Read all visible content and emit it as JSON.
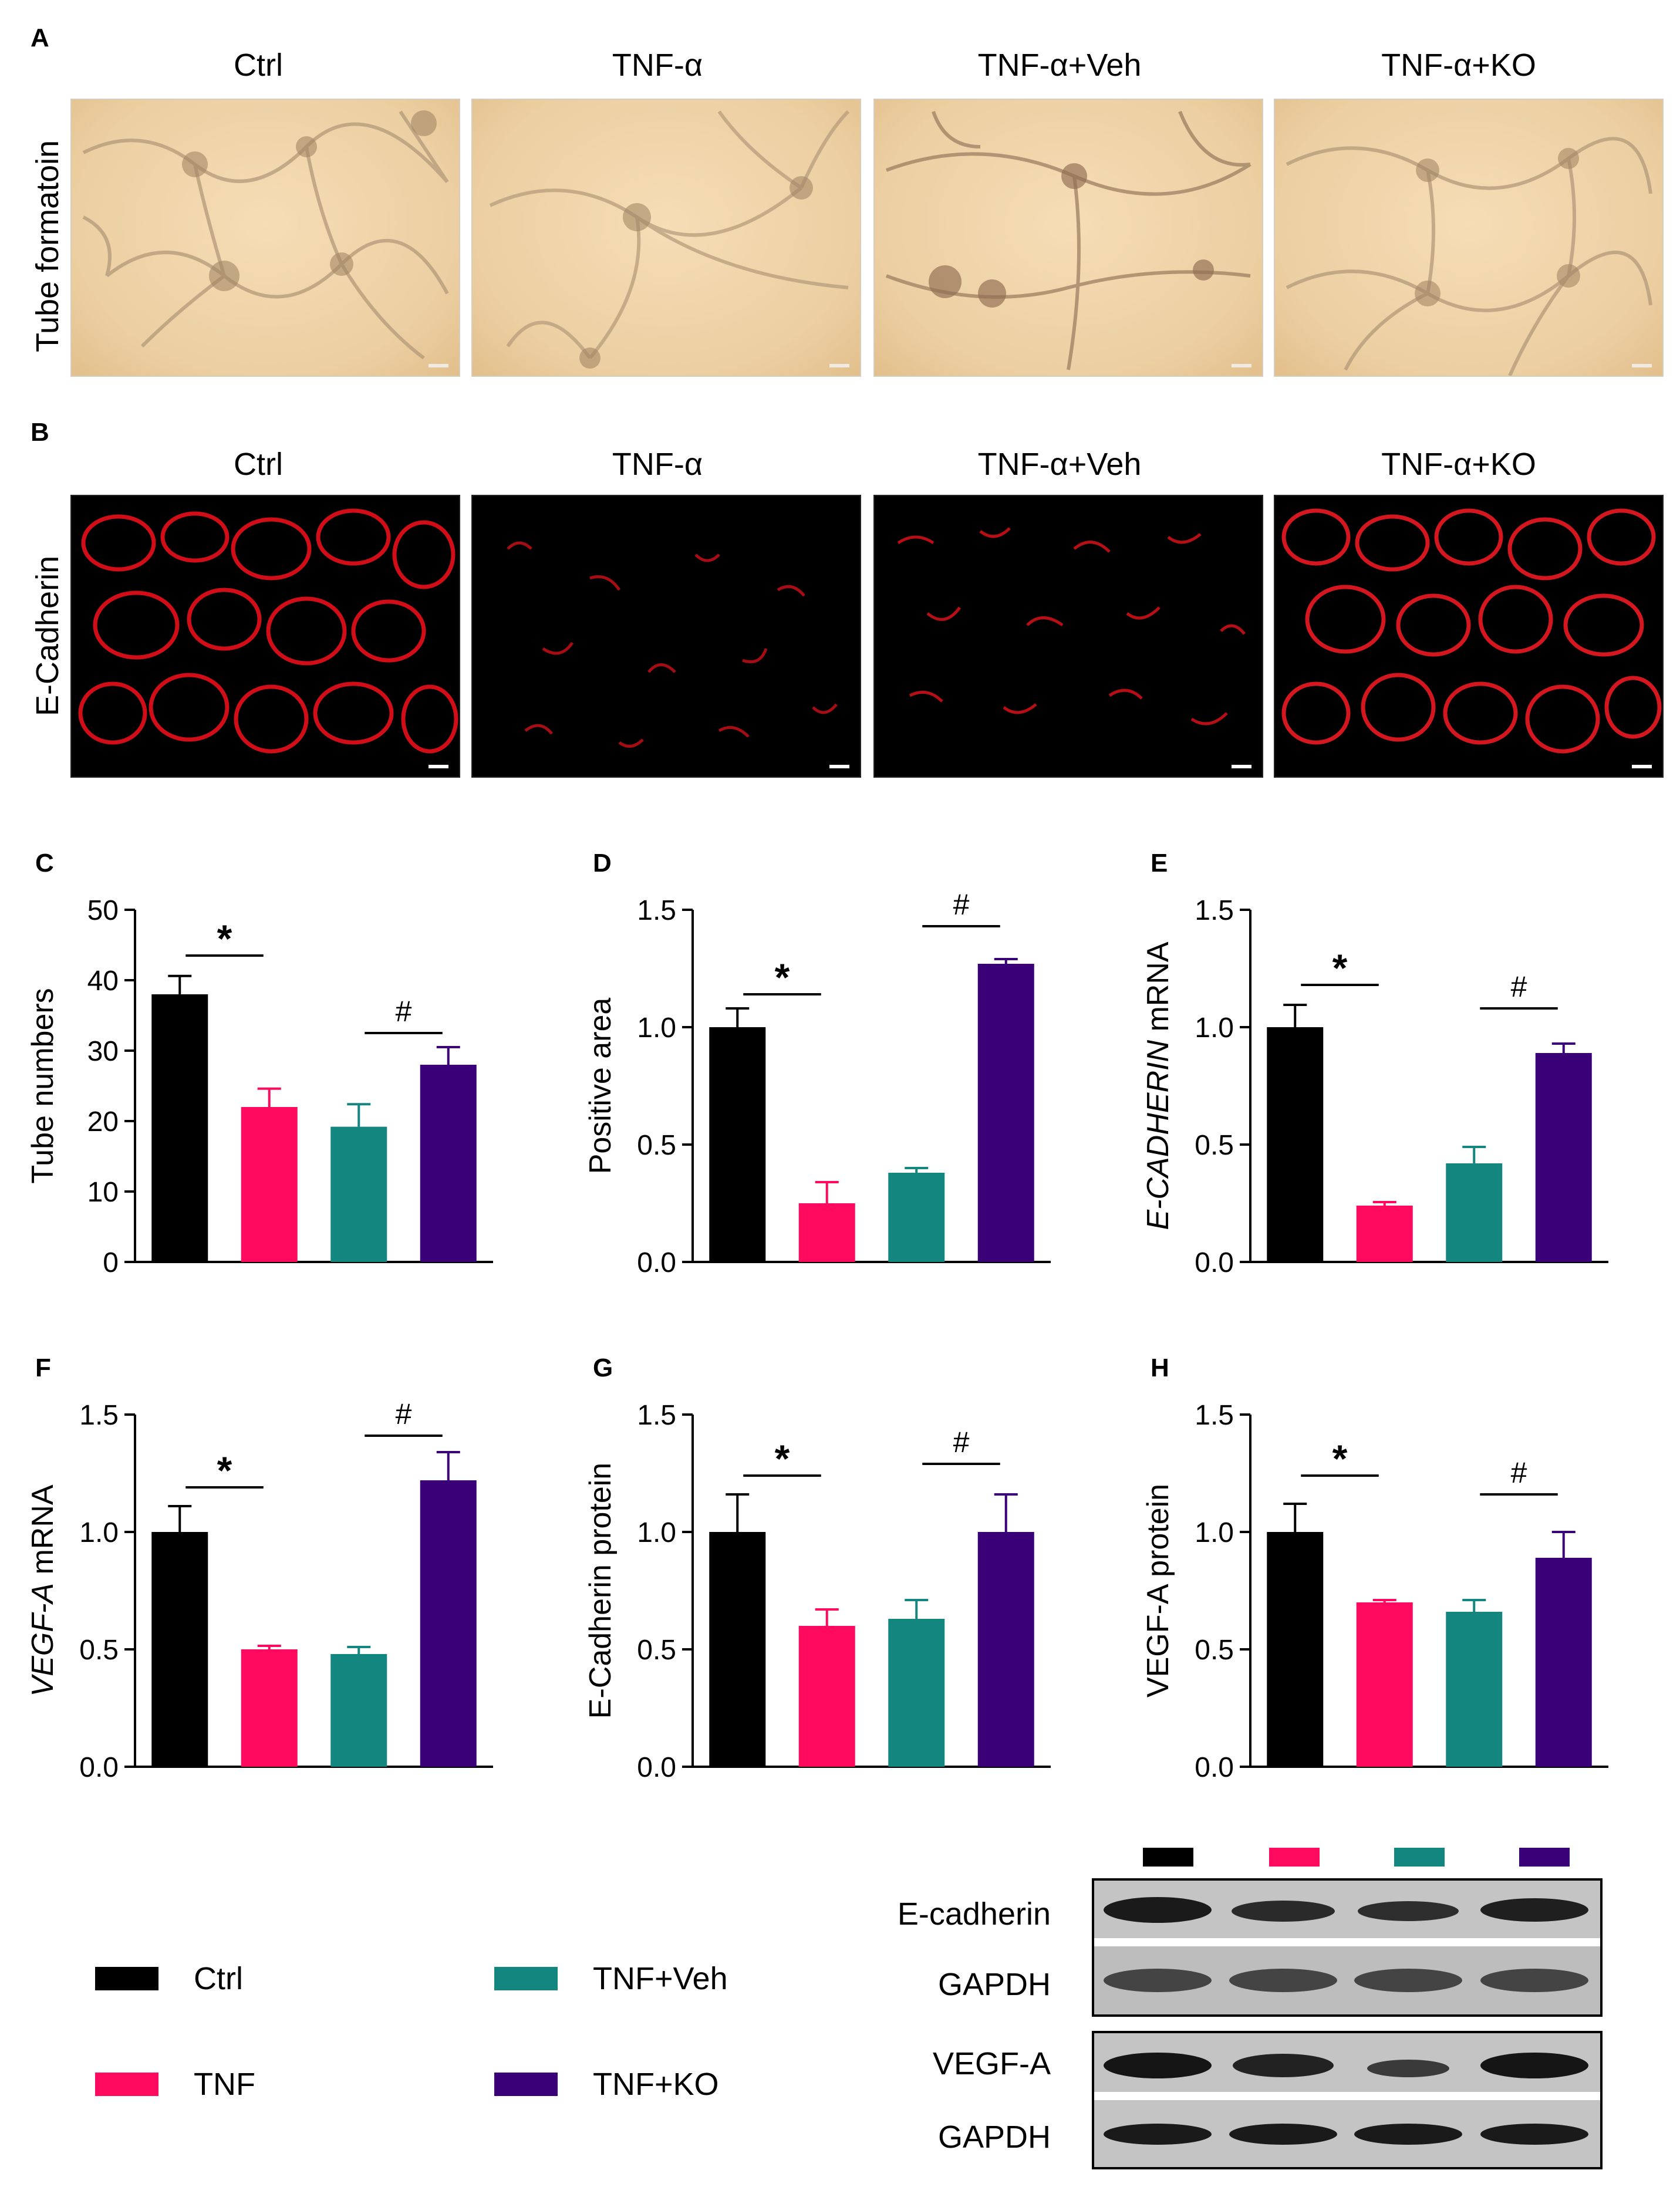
{
  "panels": {
    "A": {
      "letter": "A",
      "row_label": "Tube formatoin"
    },
    "B": {
      "letter": "B",
      "row_label": "E-Cadherin"
    },
    "column_titles": [
      "Ctrl",
      "TNF-α",
      "TNF-α+Veh",
      "TNF-α+KO"
    ]
  },
  "colors": {
    "ctrl": "#000000",
    "tnf": "#ff0a5e",
    "veh": "#138680",
    "ko": "#3a0078"
  },
  "chart_data": [
    {
      "id": "C",
      "letter": "C",
      "type": "bar",
      "title": "",
      "ylabel": "Tube numbers",
      "ylabel_italic": "",
      "ylim": [
        0,
        50
      ],
      "yticks": [
        0,
        10,
        20,
        30,
        40,
        50
      ],
      "ytick_labels": [
        "0",
        "10",
        "20",
        "30",
        "40",
        "50"
      ],
      "categories": [
        "Ctrl",
        "TNF",
        "TNF+Veh",
        "TNF+KO"
      ],
      "values": [
        38,
        22,
        19.2,
        28
      ],
      "errors": [
        2.6,
        2.6,
        3.2,
        2.5
      ],
      "annotations": [
        {
          "text": "*",
          "from": 0,
          "to": 1,
          "y": 43.5
        },
        {
          "text": "#",
          "from": 2,
          "to": 3,
          "y": 32.5
        }
      ]
    },
    {
      "id": "D",
      "letter": "D",
      "type": "bar",
      "title": "",
      "ylabel": "Positive area",
      "ylabel_italic": "",
      "ylim": [
        0,
        1.5
      ],
      "yticks": [
        0,
        0.5,
        1.0,
        1.5
      ],
      "ytick_labels": [
        "0.0",
        "0.5",
        "1.0",
        "1.5"
      ],
      "categories": [
        "Ctrl",
        "TNF",
        "TNF+Veh",
        "TNF+KO"
      ],
      "values": [
        1.0,
        0.25,
        0.38,
        1.27
      ],
      "errors": [
        0.08,
        0.09,
        0.02,
        0.02
      ],
      "annotations": [
        {
          "text": "*",
          "from": 0,
          "to": 1,
          "y": 1.14
        },
        {
          "text": "#",
          "from": 2,
          "to": 3,
          "y": 1.43
        }
      ]
    },
    {
      "id": "E",
      "letter": "E",
      "type": "bar",
      "title": "",
      "ylabel": " mRNA",
      "ylabel_italic": "E-CADHERIN",
      "ylim": [
        0,
        1.5
      ],
      "yticks": [
        0,
        0.5,
        1.0,
        1.5
      ],
      "ytick_labels": [
        "0.0",
        "0.5",
        "1.0",
        "1.5"
      ],
      "categories": [
        "Ctrl",
        "TNF",
        "TNF+Veh",
        "TNF+KO"
      ],
      "values": [
        1.0,
        0.24,
        0.42,
        0.89
      ],
      "errors": [
        0.095,
        0.015,
        0.07,
        0.04
      ],
      "annotations": [
        {
          "text": "*",
          "from": 0,
          "to": 1,
          "y": 1.18
        },
        {
          "text": "#",
          "from": 2,
          "to": 3,
          "y": 1.08
        }
      ]
    },
    {
      "id": "F",
      "letter": "F",
      "type": "bar",
      "title": "",
      "ylabel": " mRNA",
      "ylabel_italic": "VEGF-A",
      "ylim": [
        0,
        1.5
      ],
      "yticks": [
        0,
        0.5,
        1.0,
        1.5
      ],
      "ytick_labels": [
        "0.0",
        "0.5",
        "1.0",
        "1.5"
      ],
      "categories": [
        "Ctrl",
        "TNF",
        "TNF+Veh",
        "TNF+KO"
      ],
      "values": [
        1.0,
        0.5,
        0.48,
        1.22
      ],
      "errors": [
        0.11,
        0.015,
        0.03,
        0.12
      ],
      "annotations": [
        {
          "text": "*",
          "from": 0,
          "to": 1,
          "y": 1.19
        },
        {
          "text": "#",
          "from": 2,
          "to": 3,
          "y": 1.41
        }
      ]
    },
    {
      "id": "G",
      "letter": "G",
      "type": "bar",
      "title": "",
      "ylabel": "E-Cadherin protein",
      "ylabel_italic": "",
      "ylim": [
        0,
        1.5
      ],
      "yticks": [
        0,
        0.5,
        1.0,
        1.5
      ],
      "ytick_labels": [
        "0.0",
        "0.5",
        "1.0",
        "1.5"
      ],
      "categories": [
        "Ctrl",
        "TNF",
        "TNF+Veh",
        "TNF+KO"
      ],
      "values": [
        1.0,
        0.6,
        0.63,
        1.0
      ],
      "errors": [
        0.16,
        0.07,
        0.08,
        0.16
      ],
      "annotations": [
        {
          "text": "*",
          "from": 0,
          "to": 1,
          "y": 1.24
        },
        {
          "text": "#",
          "from": 2,
          "to": 3,
          "y": 1.29
        }
      ]
    },
    {
      "id": "H",
      "letter": "H",
      "type": "bar",
      "title": "",
      "ylabel": "VEGF-A protein",
      "ylabel_italic": "",
      "ylim": [
        0,
        1.5
      ],
      "yticks": [
        0,
        0.5,
        1.0,
        1.5
      ],
      "ytick_labels": [
        "0.0",
        "0.5",
        "1.0",
        "1.5"
      ],
      "categories": [
        "Ctrl",
        "TNF",
        "TNF+Veh",
        "TNF+KO"
      ],
      "values": [
        1.0,
        0.7,
        0.66,
        0.89
      ],
      "errors": [
        0.12,
        0.01,
        0.05,
        0.11
      ],
      "annotations": [
        {
          "text": "*",
          "from": 0,
          "to": 1,
          "y": 1.24
        },
        {
          "text": "#",
          "from": 2,
          "to": 3,
          "y": 1.16
        }
      ]
    }
  ],
  "legend": [
    {
      "label": "Ctrl",
      "color": "#000000"
    },
    {
      "label": "TNF+Veh",
      "color": "#138680"
    },
    {
      "label": "TNF",
      "color": "#ff0a5e"
    },
    {
      "label": "TNF+KO",
      "color": "#3a0078"
    }
  ],
  "blot": {
    "labels": [
      "E-cadherin",
      "GAPDH",
      "VEGF-A",
      "GAPDH"
    ],
    "lane_colors": [
      "#000000",
      "#ff0a5e",
      "#138680",
      "#3a0078"
    ]
  }
}
